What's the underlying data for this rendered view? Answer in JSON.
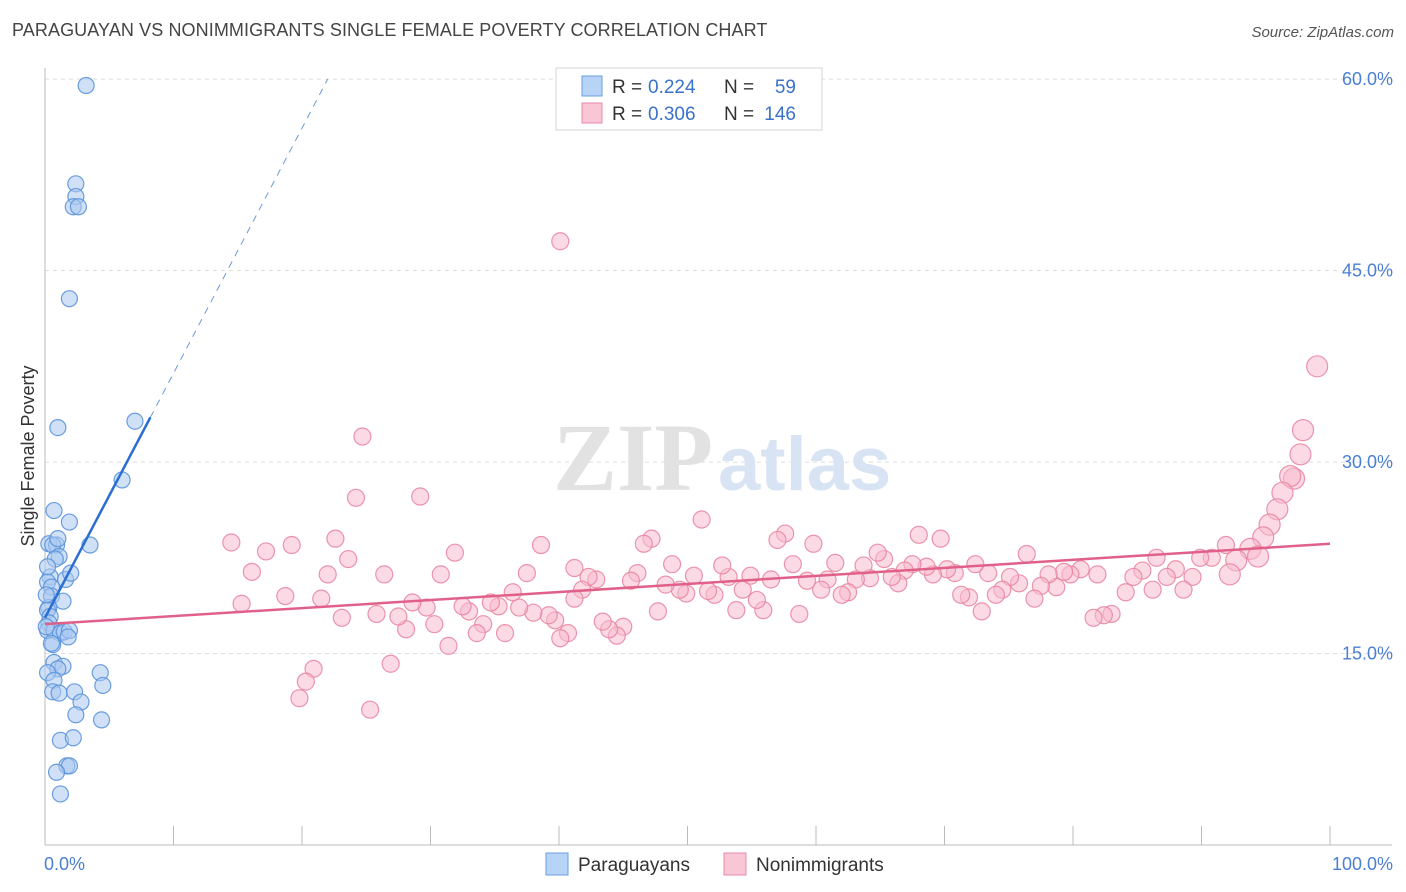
{
  "title": "PARAGUAYAN VS NONIMMIGRANTS SINGLE FEMALE POVERTY CORRELATION CHART",
  "source": "Source: ZipAtlas.com",
  "watermark": {
    "zip": "ZIP",
    "atlas": "atlas"
  },
  "legend": {
    "r_label": "R =",
    "n_label": "N =",
    "rows": [
      {
        "r": "0.224",
        "n": "59",
        "fill": "#b7d3f5",
        "stroke": "#6a9ee0"
      },
      {
        "r": "0.306",
        "n": "146",
        "fill": "#f9c6d6",
        "stroke": "#e88aa9"
      }
    ]
  },
  "bottom_legend": [
    "Paraguayans",
    "Nonimmigrants"
  ],
  "colors": {
    "blue_fill": "#a9c9f0",
    "blue_stroke": "#5b93dc",
    "blue_line": "#2a6fd0",
    "pink_fill": "#f7bccf",
    "pink_stroke": "#e8839f",
    "pink_line": "#e0608a",
    "grid": "#dddddd",
    "tick_label": "#4a7fd4"
  },
  "chart_data": {
    "type": "scatter",
    "title": "PARAGUAYAN VS NONIMMIGRANTS SINGLE FEMALE POVERTY CORRELATION CHART",
    "xlabel": "",
    "ylabel": "Single Female Poverty",
    "xlim": [
      0,
      100
    ],
    "ylim": [
      0,
      63
    ],
    "x_tick_labels": [
      "0.0%",
      "100.0%"
    ],
    "y_ticks": [
      15,
      30,
      45,
      60
    ],
    "y_tick_labels": [
      "15.0%",
      "30.0%",
      "45.0%",
      "60.0%"
    ],
    "grid": true,
    "legend_position": "top-center",
    "series": [
      {
        "name": "Paraguayans",
        "r": 0.224,
        "n": 59,
        "trend_solid": [
          [
            0,
            17.8
          ],
          [
            8.2,
            33.5
          ]
        ],
        "trend_dashed": [
          [
            8.2,
            33.5
          ],
          [
            22,
            60
          ]
        ],
        "points": [
          [
            3.2,
            59.5
          ],
          [
            2.4,
            51.8
          ],
          [
            2.4,
            50.8
          ],
          [
            2.2,
            50
          ],
          [
            2.6,
            50
          ],
          [
            1.9,
            42.8
          ],
          [
            1.0,
            32.7
          ],
          [
            7.0,
            33.2
          ],
          [
            6.0,
            28.6
          ],
          [
            0.3,
            23.6
          ],
          [
            0.7,
            26.2
          ],
          [
            0.9,
            23.5
          ],
          [
            0.6,
            23.5
          ],
          [
            1.1,
            22.6
          ],
          [
            0.8,
            22.4
          ],
          [
            1.9,
            25.3
          ],
          [
            3.5,
            23.5
          ],
          [
            0.4,
            21
          ],
          [
            1.6,
            20.8
          ],
          [
            2.0,
            21.3
          ],
          [
            0.2,
            20.6
          ],
          [
            0.5,
            20.2
          ],
          [
            0.5,
            19.5
          ],
          [
            1.4,
            19.1
          ],
          [
            0.3,
            18.6
          ],
          [
            0.2,
            18.4
          ],
          [
            0.4,
            17.9
          ],
          [
            0.3,
            17.4
          ],
          [
            0.2,
            16.8
          ],
          [
            0.7,
            16.8
          ],
          [
            1.2,
            16.6
          ],
          [
            1.5,
            16.7
          ],
          [
            1.9,
            16.8
          ],
          [
            0.6,
            15.7
          ],
          [
            0.5,
            15.8
          ],
          [
            0.7,
            14.3
          ],
          [
            1.4,
            14.0
          ],
          [
            1.0,
            13.8
          ],
          [
            0.2,
            13.5
          ],
          [
            4.3,
            13.5
          ],
          [
            4.5,
            12.5
          ],
          [
            0.7,
            12.9
          ],
          [
            0.6,
            12.0
          ],
          [
            1.1,
            11.9
          ],
          [
            2.3,
            12.0
          ],
          [
            2.8,
            11.2
          ],
          [
            2.4,
            10.2
          ],
          [
            4.4,
            9.8
          ],
          [
            1.2,
            8.2
          ],
          [
            2.2,
            8.4
          ],
          [
            1.7,
            6.2
          ],
          [
            1.9,
            6.2
          ],
          [
            0.9,
            5.7
          ],
          [
            1.2,
            4.0
          ],
          [
            0.1,
            19.6
          ],
          [
            0.1,
            17.1
          ],
          [
            0.2,
            21.8
          ],
          [
            1.0,
            24.0
          ],
          [
            1.8,
            16.3
          ]
        ]
      },
      {
        "name": "Nonimmigrants",
        "r": 0.306,
        "n": 146,
        "trend_solid": [
          [
            0,
            17.3
          ],
          [
            100,
            23.6
          ]
        ],
        "points": [
          [
            40.1,
            47.3
          ],
          [
            99.0,
            37.5
          ],
          [
            97.9,
            32.5
          ],
          [
            97.7,
            30.6
          ],
          [
            97.2,
            28.7
          ],
          [
            96.9,
            28.9
          ],
          [
            96.3,
            27.6
          ],
          [
            95.9,
            26.3
          ],
          [
            95.3,
            25.1
          ],
          [
            94.8,
            24.1
          ],
          [
            93.8,
            23.2
          ],
          [
            94.4,
            22.6
          ],
          [
            92.7,
            22.3
          ],
          [
            92.2,
            21.2
          ],
          [
            91.9,
            23.5
          ],
          [
            90.8,
            22.5
          ],
          [
            89.9,
            22.5
          ],
          [
            89.3,
            21.0
          ],
          [
            88.6,
            20.0
          ],
          [
            88.0,
            21.6
          ],
          [
            87.3,
            21.0
          ],
          [
            86.5,
            22.5
          ],
          [
            86.2,
            20.0
          ],
          [
            85.4,
            21.5
          ],
          [
            84.7,
            21.0
          ],
          [
            84.1,
            19.8
          ],
          [
            83.0,
            18.1
          ],
          [
            82.4,
            18.0
          ],
          [
            81.9,
            21.2
          ],
          [
            81.6,
            17.8
          ],
          [
            80.6,
            21.6
          ],
          [
            79.8,
            21.2
          ],
          [
            79.3,
            21.4
          ],
          [
            78.7,
            20.2
          ],
          [
            78.1,
            21.2
          ],
          [
            77.5,
            20.3
          ],
          [
            77.0,
            19.3
          ],
          [
            76.4,
            22.8
          ],
          [
            75.8,
            20.5
          ],
          [
            75.1,
            21.0
          ],
          [
            74.5,
            20.0
          ],
          [
            74.0,
            19.6
          ],
          [
            73.4,
            21.3
          ],
          [
            72.9,
            18.3
          ],
          [
            72.4,
            22.0
          ],
          [
            71.9,
            19.4
          ],
          [
            71.3,
            19.6
          ],
          [
            70.8,
            21.3
          ],
          [
            70.2,
            21.6
          ],
          [
            69.7,
            24.0
          ],
          [
            69.1,
            21.2
          ],
          [
            68.6,
            21.8
          ],
          [
            68.0,
            24.3
          ],
          [
            67.5,
            22.0
          ],
          [
            66.9,
            21.5
          ],
          [
            66.4,
            20.5
          ],
          [
            65.9,
            21.0
          ],
          [
            65.3,
            22.4
          ],
          [
            64.8,
            22.9
          ],
          [
            64.2,
            20.9
          ],
          [
            63.7,
            21.9
          ],
          [
            63.1,
            20.8
          ],
          [
            62.5,
            19.8
          ],
          [
            62.0,
            19.6
          ],
          [
            61.5,
            22.1
          ],
          [
            60.9,
            20.8
          ],
          [
            60.4,
            20.0
          ],
          [
            59.8,
            23.6
          ],
          [
            59.3,
            20.7
          ],
          [
            58.7,
            18.1
          ],
          [
            58.2,
            22.0
          ],
          [
            57.6,
            24.4
          ],
          [
            57.0,
            23.9
          ],
          [
            56.5,
            20.8
          ],
          [
            55.9,
            18.4
          ],
          [
            55.4,
            19.2
          ],
          [
            54.9,
            21.1
          ],
          [
            54.3,
            20.0
          ],
          [
            53.8,
            18.4
          ],
          [
            53.2,
            21.0
          ],
          [
            52.7,
            21.9
          ],
          [
            52.1,
            19.6
          ],
          [
            51.6,
            19.9
          ],
          [
            51.1,
            25.5
          ],
          [
            50.5,
            21.1
          ],
          [
            49.9,
            19.7
          ],
          [
            49.4,
            20.0
          ],
          [
            48.8,
            22.0
          ],
          [
            48.3,
            20.4
          ],
          [
            47.7,
            18.3
          ],
          [
            47.2,
            24.0
          ],
          [
            46.6,
            23.6
          ],
          [
            46.1,
            21.3
          ],
          [
            45.6,
            20.7
          ],
          [
            45.0,
            17.1
          ],
          [
            44.5,
            16.4
          ],
          [
            43.9,
            16.9
          ],
          [
            43.4,
            17.5
          ],
          [
            42.9,
            20.8
          ],
          [
            42.3,
            21.0
          ],
          [
            41.8,
            20.0
          ],
          [
            41.2,
            19.3
          ],
          [
            40.7,
            16.6
          ],
          [
            40.1,
            16.2
          ],
          [
            39.7,
            17.6
          ],
          [
            39.2,
            18.0
          ],
          [
            38.6,
            23.5
          ],
          [
            38.0,
            18.2
          ],
          [
            37.5,
            21.3
          ],
          [
            36.9,
            18.6
          ],
          [
            36.4,
            19.8
          ],
          [
            35.8,
            16.6
          ],
          [
            35.3,
            18.7
          ],
          [
            34.7,
            19.0
          ],
          [
            34.1,
            17.3
          ],
          [
            33.6,
            16.6
          ],
          [
            33.0,
            18.3
          ],
          [
            32.5,
            18.7
          ],
          [
            31.9,
            22.9
          ],
          [
            31.4,
            15.6
          ],
          [
            30.8,
            21.2
          ],
          [
            30.3,
            17.3
          ],
          [
            29.7,
            18.6
          ],
          [
            29.2,
            27.3
          ],
          [
            28.6,
            19.0
          ],
          [
            28.1,
            16.9
          ],
          [
            27.5,
            17.9
          ],
          [
            26.9,
            14.2
          ],
          [
            26.4,
            21.2
          ],
          [
            25.8,
            18.1
          ],
          [
            25.3,
            10.6
          ],
          [
            24.7,
            32.0
          ],
          [
            24.2,
            27.2
          ],
          [
            23.6,
            22.4
          ],
          [
            23.1,
            17.8
          ],
          [
            22.6,
            24.0
          ],
          [
            22.0,
            21.2
          ],
          [
            21.5,
            19.3
          ],
          [
            20.9,
            13.8
          ],
          [
            20.3,
            12.8
          ],
          [
            19.8,
            11.5
          ],
          [
            19.2,
            23.5
          ],
          [
            18.7,
            19.5
          ],
          [
            17.2,
            23.0
          ],
          [
            16.1,
            21.4
          ],
          [
            15.3,
            18.9
          ],
          [
            14.5,
            23.7
          ],
          [
            41.2,
            21.7
          ]
        ]
      }
    ]
  }
}
